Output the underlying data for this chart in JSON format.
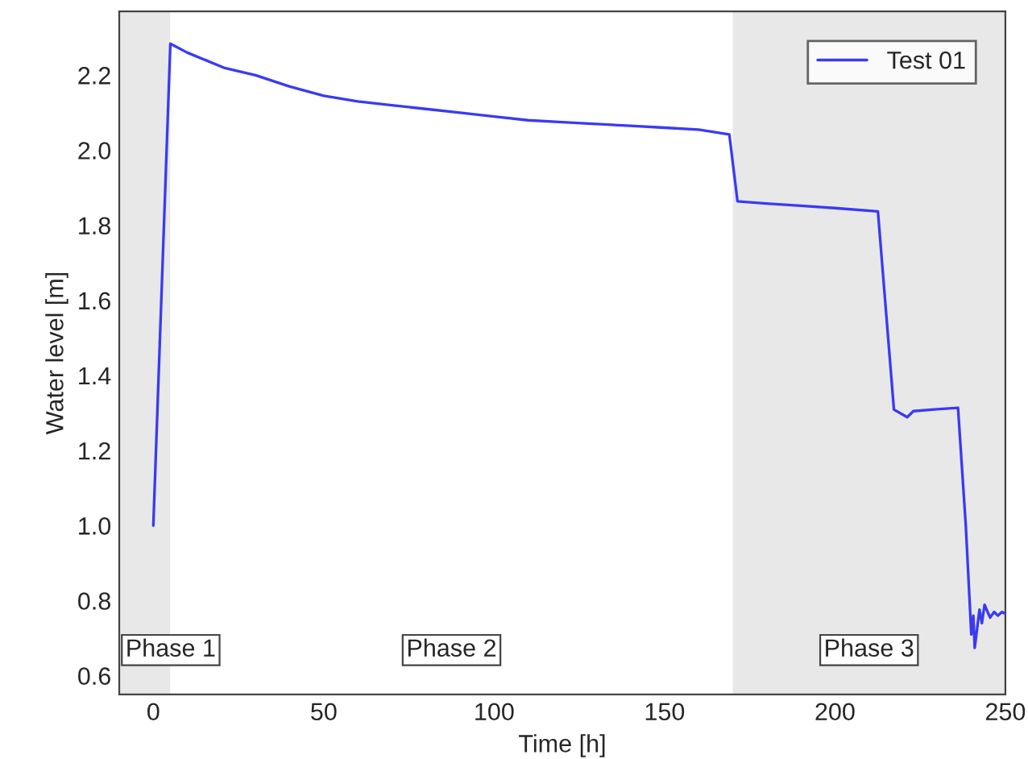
{
  "chart_data": {
    "type": "line",
    "xlabel": "Time [h]",
    "ylabel": "Water level [m]",
    "xlim": [
      -10,
      250
    ],
    "xticks": [
      0,
      50,
      100,
      150,
      200,
      250
    ],
    "ylim": [
      0.55,
      2.37
    ],
    "yticks": [
      0.6,
      0.8,
      {
        "value": 1,
        "label": "1.0"
      },
      1.2,
      1.4,
      1.6,
      1.8,
      {
        "value": 2,
        "label": "2.0"
      },
      2.2
    ],
    "grid": false,
    "legend": "top right",
    "marker": "none",
    "line_style": "solid",
    "bands": [
      {
        "axis": "x",
        "from": -10,
        "to": 5,
        "label": "Phase 1",
        "color": "#e8e8e8"
      },
      {
        "axis": "x",
        "from": 5,
        "to": 170,
        "label": "Phase 2",
        "color": "#ffffff"
      },
      {
        "axis": "x",
        "from": 170,
        "to": 250,
        "label": "Phase 3",
        "color": "#e8e8e8"
      }
    ],
    "series": [
      {
        "name": "Test 01",
        "color": "#3a3af5",
        "x": [
          0,
          5,
          10,
          20.7,
          30,
          40,
          50,
          60,
          70,
          80,
          90,
          100,
          110,
          120,
          130,
          140,
          150,
          160,
          169,
          171.4,
          180,
          190,
          200,
          212.6,
          217.3,
          221.2,
          223,
          230,
          236.1,
          238.4,
          240,
          240.6,
          241,
          242.4,
          243.1,
          243.9,
          245.5,
          246.7,
          247.8,
          249,
          250
        ],
        "values": [
          1.0,
          2.284,
          2.26,
          2.22,
          2.2,
          2.17,
          2.145,
          2.13,
          2.12,
          2.11,
          2.1,
          2.09,
          2.08,
          2.075,
          2.07,
          2.065,
          2.06,
          2.055,
          2.042,
          1.864,
          1.858,
          1.852,
          1.846,
          1.837,
          1.309,
          1.289,
          1.305,
          1.31,
          1.314,
          0.997,
          0.71,
          0.76,
          0.674,
          0.776,
          0.74,
          0.789,
          0.755,
          0.77,
          0.76,
          0.77,
          0.765
        ]
      }
    ]
  }
}
